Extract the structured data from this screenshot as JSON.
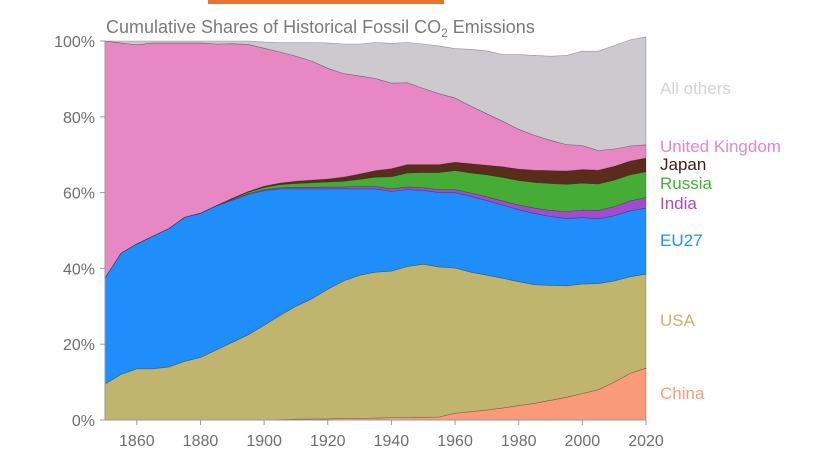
{
  "chart_data": {
    "type": "area",
    "stacked": true,
    "title": "Cumulative Shares of Historical Fossil CO",
    "title_subscript": "2",
    "title_suffix": " Emissions",
    "xlim": [
      1850,
      2020
    ],
    "ylim": [
      0,
      100
    ],
    "x_ticks": [
      1860,
      1880,
      1900,
      1920,
      1940,
      1960,
      1980,
      2000,
      2020
    ],
    "x_tick_labels": [
      "1860",
      "1880",
      "1900",
      "1920",
      "1940",
      "1960",
      "1980",
      "2000",
      "2020"
    ],
    "y_ticks": [
      0,
      20,
      40,
      60,
      80,
      100
    ],
    "y_tick_labels": [
      "0%",
      "20%",
      "40%",
      "60%",
      "80%",
      "100%"
    ],
    "x": [
      1850,
      1855,
      1860,
      1865,
      1870,
      1875,
      1880,
      1885,
      1890,
      1895,
      1900,
      1905,
      1910,
      1915,
      1920,
      1925,
      1930,
      1935,
      1940,
      1945,
      1950,
      1955,
      1960,
      1965,
      1970,
      1975,
      1980,
      1985,
      1990,
      1995,
      2000,
      2005,
      2010,
      2015,
      2020
    ],
    "series": [
      {
        "name": "China",
        "color": "#fa9a78",
        "values": [
          0,
          0,
          0,
          0,
          0,
          0,
          0,
          0,
          0,
          0,
          0,
          0.1,
          0.2,
          0.3,
          0.3,
          0.4,
          0.4,
          0.5,
          0.6,
          0.6,
          0.7,
          0.8,
          1.8,
          2.2,
          2.6,
          3.2,
          3.8,
          4.4,
          5.2,
          6,
          7,
          8,
          10,
          12.3,
          13.7
        ]
      },
      {
        "name": "USA",
        "color": "#bfb56e",
        "values": [
          9.5,
          12,
          13.5,
          13.5,
          14,
          15.5,
          16.5,
          18.5,
          20.5,
          22.5,
          25,
          27.5,
          29.8,
          31.7,
          34.2,
          36.3,
          37.8,
          38.5,
          38.7,
          39.9,
          40.4,
          39.6,
          38.3,
          36.8,
          35.6,
          34.2,
          32.7,
          31.3,
          30.3,
          29.4,
          28.9,
          28,
          26.7,
          25.5,
          24.8
        ]
      },
      {
        "name": "EU27",
        "color": "#1f8efa",
        "values": [
          28,
          32,
          33,
          35,
          36.5,
          38,
          38,
          38,
          37.5,
          37,
          35.5,
          33.4,
          31,
          29,
          26.5,
          24.3,
          22.8,
          22,
          21,
          20.3,
          19.5,
          19.6,
          19.9,
          20,
          19.7,
          19.3,
          19,
          18.8,
          18.2,
          17.8,
          17.5,
          17.1,
          17.2,
          17.4,
          17.4
        ]
      },
      {
        "name": "India",
        "color": "#a24bcf",
        "values": [
          0,
          0,
          0,
          0,
          0,
          0,
          0.1,
          0.1,
          0.2,
          0.2,
          0.3,
          0.3,
          0.4,
          0.4,
          0.5,
          0.5,
          0.6,
          0.6,
          0.7,
          0.7,
          0.7,
          0.8,
          0.8,
          0.9,
          1,
          1.1,
          1.2,
          1.4,
          1.6,
          1.8,
          2,
          2.2,
          2.4,
          2.6,
          2.8
        ]
      },
      {
        "name": "Russia",
        "color": "#45ad35",
        "values": [
          0,
          0,
          0,
          0,
          0,
          0,
          0,
          0,
          0.2,
          0.4,
          0.6,
          0.8,
          1,
          1.2,
          1.3,
          1.5,
          1.9,
          2.5,
          3.2,
          3.7,
          4,
          4.5,
          5,
          5.3,
          5.8,
          6.2,
          6.5,
          6.8,
          7.1,
          7.2,
          7.1,
          7,
          7,
          6.9,
          6.8
        ]
      },
      {
        "name": "Japan",
        "color": "#5a2c1c",
        "values": [
          0,
          0,
          0,
          0,
          0,
          0,
          0,
          0,
          0.1,
          0.2,
          0.3,
          0.4,
          0.6,
          0.7,
          0.8,
          1.1,
          1.4,
          1.7,
          2.1,
          2.2,
          2.1,
          2.1,
          2.2,
          2.4,
          2.5,
          2.8,
          3,
          3.2,
          3.4,
          3.5,
          3.6,
          3.6,
          3.6,
          3.6,
          3.6
        ]
      },
      {
        "name": "United Kingdom",
        "color": "#e787c4",
        "values": [
          62.5,
          55.5,
          52.5,
          51,
          49,
          46,
          44.9,
          42.6,
          40.8,
          38.8,
          36.4,
          34.6,
          33,
          31.4,
          29.2,
          27.3,
          25.9,
          24.3,
          22.6,
          21.6,
          20.1,
          18.7,
          17,
          15.2,
          13.6,
          12,
          10.5,
          9.2,
          8,
          7,
          6.3,
          5.2,
          4.6,
          4,
          3.5
        ]
      },
      {
        "name": "All others",
        "color": "#cdcacf",
        "values": [
          0,
          0.5,
          1,
          0.5,
          0.5,
          0.5,
          0.5,
          0.8,
          0.7,
          0.9,
          1.6,
          2.5,
          3.6,
          4.9,
          6.7,
          7.8,
          8.4,
          9.5,
          10.5,
          10.6,
          11.7,
          12.6,
          13,
          15,
          16.6,
          17.6,
          19.7,
          21.1,
          22.2,
          23.5,
          24.9,
          26.2,
          27.3,
          28,
          28.5
        ]
      }
    ],
    "legend": [
      {
        "label": "All others",
        "color": "#d3d2d6"
      },
      {
        "label": "United Kingdom",
        "color": "#e787c4"
      },
      {
        "label": "Japan",
        "color": "#3b1f16"
      },
      {
        "label": "Russia",
        "color": "#45ad35"
      },
      {
        "label": "India",
        "color": "#a24bcf"
      },
      {
        "label": "EU27",
        "color": "#1f8efa"
      },
      {
        "label": "USA",
        "color": "#bfb56e"
      },
      {
        "label": "China",
        "color": "#fa9a78"
      }
    ],
    "legend_placement": "right",
    "grid": false
  }
}
